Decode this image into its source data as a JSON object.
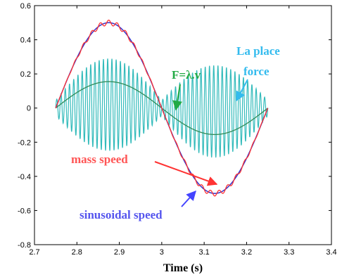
{
  "chart_data": {
    "type": "line",
    "title": "",
    "xlabel": "Time (s)",
    "ylabel": "",
    "xlim": [
      2.7,
      3.4
    ],
    "ylim": [
      -0.8,
      0.6
    ],
    "xticks": [
      "2.7",
      "2.8",
      "2.9",
      "3",
      "3.1",
      "3.2",
      "3.3",
      "3.4"
    ],
    "yticks": [
      "0.6",
      "0.4",
      "0.2",
      "0",
      "-0.2",
      "-0.4",
      "-0.6",
      "-0.8"
    ],
    "grid": false,
    "series": [
      {
        "key": "sinusoidal",
        "color": "#3333cc",
        "description": "v(t) = 0.5*sin(2*pi*(t-2.75)/0.5) for t in [2.75, 3.25]",
        "amplitude": 0.5,
        "t_start": 2.75,
        "t_end": 3.25,
        "samples": [
          [
            2.75,
            0.0
          ],
          [
            2.8,
            0.29
          ],
          [
            2.85,
            0.48
          ],
          [
            2.875,
            0.5
          ],
          [
            2.9,
            0.48
          ],
          [
            2.95,
            0.29
          ],
          [
            3.0,
            0.0
          ],
          [
            3.05,
            -0.29
          ],
          [
            3.1,
            -0.48
          ],
          [
            3.125,
            -0.5
          ],
          [
            3.15,
            -0.48
          ],
          [
            3.2,
            -0.29
          ],
          [
            3.25,
            0.0
          ]
        ]
      },
      {
        "key": "mass",
        "color": "#ff3333",
        "description": "sinusoidal speed plus small oscillation near the extrema",
        "ripple_amplitude": 0.015,
        "ripple_frequency_hz": 50,
        "t_start": 2.75,
        "t_end": 3.25
      },
      {
        "key": "force_lambda_v",
        "color": "#2e8b57",
        "description": "lambda*v with lambda*v peak 0.155",
        "amplitude": 0.155,
        "t_start": 2.75,
        "t_end": 3.25,
        "samples": [
          [
            2.75,
            0.0
          ],
          [
            2.875,
            0.155
          ],
          [
            3.0,
            0.0
          ],
          [
            3.125,
            -0.155
          ],
          [
            3.25,
            0.0
          ]
        ]
      },
      {
        "key": "laplace",
        "color": "#33bbbb",
        "description": "oscillating force with envelope up to 0.3, frequency ~100 Hz",
        "envelope_amplitude": 0.3,
        "oscillation_frequency_hz": 100,
        "t_start": 2.75,
        "t_end": 3.25
      }
    ],
    "annotations": [
      {
        "key": "laplace_line1",
        "text": "La place",
        "color": "#33bbee"
      },
      {
        "key": "laplace_line2",
        "text": "force",
        "color": "#33bbee"
      },
      {
        "key": "force",
        "text": "F=λ.v",
        "color": "#22aa44"
      },
      {
        "key": "mass",
        "text": "mass speed",
        "color": "#ff5555"
      },
      {
        "key": "sinusoidal",
        "text": "sinusoidal speed",
        "color": "#5555ee"
      }
    ]
  }
}
